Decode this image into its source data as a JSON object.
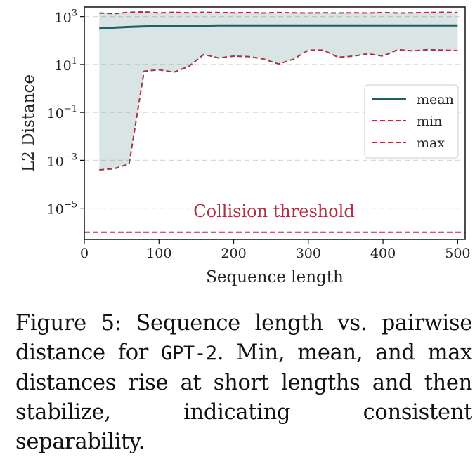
{
  "chart_data": {
    "type": "line",
    "xlabel": "Sequence length",
    "ylabel": "L2 Distance",
    "xlim": [
      0,
      510
    ],
    "ylim_log10": [
      -6.3,
      3.4
    ],
    "y_scale": "log",
    "x_ticks": [
      0,
      100,
      200,
      300,
      400,
      500
    ],
    "x_tick_labels": [
      "0",
      "100",
      "200",
      "300",
      "400",
      "500"
    ],
    "y_ticks_log10": [
      3,
      1,
      -1,
      -3,
      -5
    ],
    "y_tick_bases": [
      "10",
      "10",
      "10",
      "10",
      "10"
    ],
    "y_tick_exponents": [
      "3",
      "1",
      "−1",
      "−3",
      "−5"
    ],
    "grid": "horizontal dashed",
    "legend_position": "center-right",
    "x": [
      20,
      40,
      60,
      80,
      100,
      120,
      140,
      160,
      180,
      200,
      220,
      240,
      260,
      280,
      300,
      320,
      340,
      360,
      380,
      400,
      420,
      440,
      460,
      480,
      500
    ],
    "series": [
      {
        "name": "mean",
        "style": "solid",
        "color": "#1f5f66",
        "log10_values": [
          2.5,
          2.54,
          2.57,
          2.59,
          2.6,
          2.61,
          2.62,
          2.62,
          2.63,
          2.63,
          2.63,
          2.63,
          2.63,
          2.63,
          2.63,
          2.63,
          2.63,
          2.63,
          2.63,
          2.63,
          2.63,
          2.63,
          2.63,
          2.63,
          2.63
        ]
      },
      {
        "name": "min",
        "style": "dashed",
        "color": "#a83245",
        "log10_values": [
          -3.4,
          -3.35,
          -3.15,
          0.72,
          0.78,
          0.68,
          0.92,
          1.42,
          1.27,
          1.35,
          1.33,
          1.23,
          1.02,
          1.22,
          1.6,
          1.6,
          1.3,
          1.35,
          1.45,
          1.35,
          1.62,
          1.57,
          1.62,
          1.6,
          1.58
        ]
      },
      {
        "name": "max",
        "style": "dashed",
        "color": "#a83245",
        "log10_values": [
          3.15,
          3.12,
          3.18,
          3.2,
          3.15,
          3.18,
          3.16,
          3.18,
          3.17,
          3.16,
          3.17,
          3.15,
          3.17,
          3.16,
          3.15,
          3.16,
          3.15,
          3.16,
          3.15,
          3.17,
          3.15,
          3.16,
          3.17,
          3.18,
          3.17
        ]
      }
    ],
    "threshold": {
      "label": "Collision threshold",
      "log10_value": -6.0,
      "color": "#a83245"
    }
  },
  "caption": {
    "prefix": "Figure 5: Sequence length vs. pairwise distance for ",
    "model": "GPT-2",
    "suffix": ". Min, mean, and max distances rise at short lengths and then stabilize, indicating consistent separability."
  }
}
